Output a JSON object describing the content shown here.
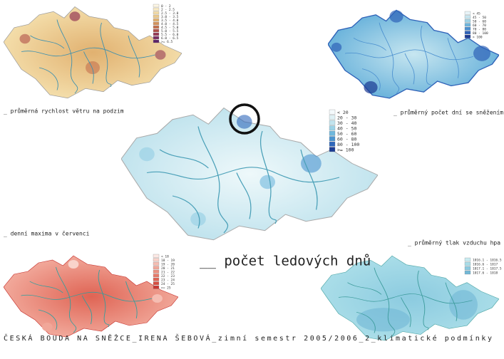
{
  "captions": [
    "_ průměrná rychlost větru na podzim",
    "_ průměrný počet dní se sněžením",
    "_ denní maxima v červenci",
    "_ průměrný tlak vzduchu hpa"
  ],
  "title": "__ počet ledových dnů",
  "footer": "ČESKÁ BOUDA NA SNĚŽCE_IRENA ŠEBOVÁ_zimní semestr 2005/2006_2_klimatické podmínky",
  "legends": [
    {
      "items": [
        {
          "label": "0 - 2",
          "color": "#fdf6e4"
        },
        {
          "label": "2 - 2.5",
          "color": "#f9ebc6"
        },
        {
          "label": "2.5 - 3.0",
          "color": "#f3dca8"
        },
        {
          "label": "3.0 - 3.5",
          "color": "#ecc98a"
        },
        {
          "label": "3.5 - 4.0",
          "color": "#e1b170"
        },
        {
          "label": "4.0 - 4.5",
          "color": "#d4935c"
        },
        {
          "label": "4.5 - 5.0",
          "color": "#c4714e"
        },
        {
          "label": "5.0 - 5.5",
          "color": "#b05049"
        },
        {
          "label": "5.5 - 6.0",
          "color": "#963a55"
        },
        {
          "label": "6.0 - 6.5",
          "color": "#7a2d62"
        },
        {
          "label": ">= 6.5",
          "color": "#5c2468"
        }
      ]
    },
    {
      "items": [
        {
          "label": "< 45",
          "color": "#e8f4f8"
        },
        {
          "label": "45 - 50",
          "color": "#c7e6f0"
        },
        {
          "label": "50 - 60",
          "color": "#9fd3e6"
        },
        {
          "label": "60 - 70",
          "color": "#6eb5dc"
        },
        {
          "label": "70 - 80",
          "color": "#4a8fcf"
        },
        {
          "label": "80 - 100",
          "color": "#2f62b8"
        },
        {
          "label": "> 100",
          "color": "#1d3b93"
        }
      ]
    },
    {
      "items": [
        {
          "label": "< 20",
          "color": "#f4fafc"
        },
        {
          "label": "20 - 30",
          "color": "#dff1f5"
        },
        {
          "label": "30 - 40",
          "color": "#c2e4ee"
        },
        {
          "label": "40 - 50",
          "color": "#9bd2e6"
        },
        {
          "label": "50 - 60",
          "color": "#6fb8dd"
        },
        {
          "label": "60 - 80",
          "color": "#4b94d0"
        },
        {
          "label": "80 - 100",
          "color": "#2f67bb"
        },
        {
          "label": ">= 100",
          "color": "#1c3d95"
        }
      ]
    },
    {
      "items": [
        {
          "label": "< 18",
          "color": "#fde8e4"
        },
        {
          "label": "18 - 19",
          "color": "#f9d3cb"
        },
        {
          "label": "19 - 20",
          "color": "#f5bdb2"
        },
        {
          "label": "20 - 21",
          "color": "#f1a799"
        },
        {
          "label": "21 - 22",
          "color": "#ec9080"
        },
        {
          "label": "22 - 23",
          "color": "#e67a69"
        },
        {
          "label": "23 - 24",
          "color": "#df6454"
        },
        {
          "label": "24 - 25",
          "color": "#d64d41"
        },
        {
          "label": ">= 25",
          "color": "#c83632"
        }
      ]
    },
    {
      "items": [
        {
          "label": "1016.1 - 1016.5",
          "color": "#c9ecf1"
        },
        {
          "label": "1016.6 - 1017",
          "color": "#a9dde8"
        },
        {
          "label": "1017.1 - 1017.5",
          "color": "#8ccbe0"
        },
        {
          "label": "1017.6 - 1018",
          "color": "#72b8d6"
        }
      ]
    }
  ]
}
